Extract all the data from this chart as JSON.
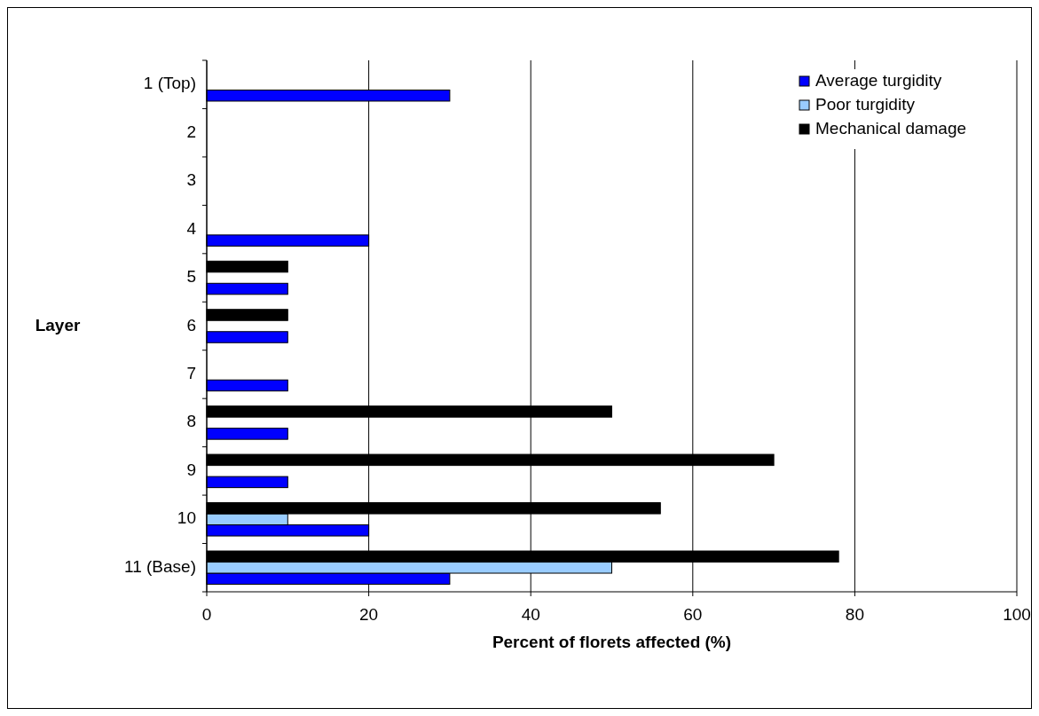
{
  "chart_data": {
    "type": "bar",
    "orientation": "horizontal",
    "xlabel": "Percent of florets affected (%)",
    "ylabel": "Layer",
    "categories": [
      "1 (Top)",
      "2",
      "3",
      "4",
      "5",
      "6",
      "7",
      "8",
      "9",
      "10",
      "11 (Base)"
    ],
    "series": [
      {
        "name": "Average turgidity",
        "color": "#0000ff",
        "values": [
          30,
          0,
          0,
          20,
          10,
          10,
          10,
          10,
          10,
          20,
          30
        ]
      },
      {
        "name": "Poor turgidity",
        "color": "#99ccff",
        "values": [
          0,
          0,
          0,
          0,
          0,
          0,
          0,
          0,
          0,
          10,
          50
        ]
      },
      {
        "name": "Mechanical damage",
        "color": "#000000",
        "values": [
          0,
          0,
          0,
          0,
          10,
          10,
          0,
          50,
          70,
          56,
          78
        ]
      }
    ],
    "xlim": [
      0,
      100
    ],
    "xticks": [
      0,
      20,
      40,
      60,
      80,
      100
    ],
    "grid": "x",
    "legend": "top right"
  }
}
